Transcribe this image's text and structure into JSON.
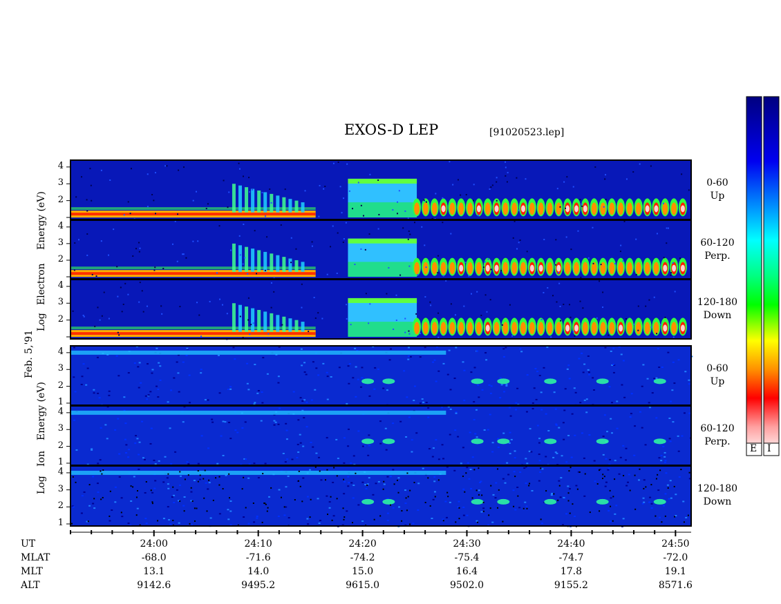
{
  "header": {
    "title": "EXOS-D LEP",
    "filename": "[91020523.lep]"
  },
  "date_label": "Feb. 5,'91",
  "axis_groups": {
    "electron": [
      "Log",
      "Electron",
      "Energy (eV)"
    ],
    "ion": [
      "Log",
      "Ion",
      "Energy (eV)"
    ]
  },
  "colorbars": {
    "e_label": "E",
    "i_label": "I"
  },
  "chart_data": {
    "type": "heatmap",
    "title": "EXOS-D LEP",
    "x_start_minute": 1432,
    "x_end_minute": 1491.5,
    "y_ticks": [
      "1",
      "2",
      "3",
      "4"
    ],
    "ylim": [
      1,
      4.2
    ],
    "panels": [
      {
        "species": "Electron",
        "pitch": "0-60",
        "dir": "Up"
      },
      {
        "species": "Electron",
        "pitch": "60-120",
        "dir": "Perp."
      },
      {
        "species": "Electron",
        "pitch": "120-180",
        "dir": "Down"
      },
      {
        "species": "Ion",
        "pitch": "0-60",
        "dir": "Up"
      },
      {
        "species": "Ion",
        "pitch": "60-120",
        "dir": "Perp."
      },
      {
        "species": "Ion",
        "pitch": "120-180",
        "dir": "Down"
      }
    ],
    "x_ticks": [
      "24:00",
      "24:10",
      "24:20",
      "24:30",
      "24:40",
      "24:50"
    ],
    "x_tick_minutes": [
      1440,
      1450,
      1460,
      1470,
      1480,
      1490
    ],
    "ephemeris": {
      "labels": [
        "UT",
        "MLAT",
        "MLT",
        "ALT"
      ],
      "MLAT": [
        "-68.0",
        "-71.6",
        "-74.2",
        "-75.4",
        "-74.7",
        "-72.0"
      ],
      "MLT": [
        "13.1",
        "14.0",
        "15.0",
        "16.4",
        "17.8",
        "19.1"
      ],
      "ALT": [
        "9142.6",
        "9495.2",
        "9615.0",
        "9502.0",
        "9155.2",
        "8571.6"
      ]
    }
  }
}
